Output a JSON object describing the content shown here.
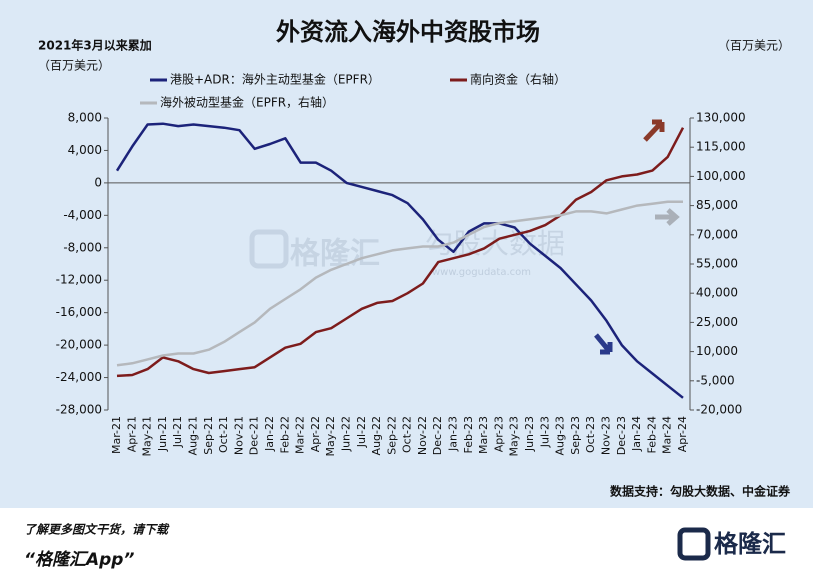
{
  "chart_data": {
    "type": "line",
    "title": "外资流入海外中资股市场",
    "y_axis_note": "2021年3月以来累加",
    "y_axis_unit": "（百万美元）",
    "y2_axis_unit": "（百万美元）",
    "categories": [
      "Mar-21",
      "Apr-21",
      "May-21",
      "Jun-21",
      "Jul-21",
      "Aug-21",
      "Sep-21",
      "Oct-21",
      "Nov-21",
      "Dec-21",
      "Jan-22",
      "Feb-22",
      "Mar-22",
      "Apr-22",
      "May-22",
      "Jun-22",
      "Jul-22",
      "Aug-22",
      "Sep-22",
      "Oct-22",
      "Nov-22",
      "Dec-22",
      "Jan-23",
      "Feb-23",
      "Mar-23",
      "Apr-23",
      "May-23",
      "Jun-23",
      "Jul-23",
      "Aug-23",
      "Sep-23",
      "Oct-23",
      "Nov-23",
      "Dec-23",
      "Jan-24",
      "Feb-24",
      "Mar-24",
      "Apr-24"
    ],
    "series": [
      {
        "name": "港股+ADR：海外主动型基金（EPFR）",
        "color": "#1c237a",
        "axis": "y",
        "values": [
          1500,
          4500,
          7200,
          7300,
          7000,
          7200,
          7000,
          6800,
          6500,
          4200,
          4800,
          5500,
          2500,
          2500,
          1500,
          0,
          -500,
          -1000,
          -1500,
          -2500,
          -4500,
          -7000,
          -8500,
          -6000,
          -5000,
          -5000,
          -5500,
          -7500,
          -9000,
          -10500,
          -12500,
          -14500,
          -17000,
          -20000,
          -22000,
          -23500,
          -25000,
          -26500
        ]
      },
      {
        "name": "南向资金（右轴）",
        "color": "#7d1c1c",
        "axis": "y2",
        "values": [
          -2500,
          -2000,
          1000,
          7000,
          5000,
          1000,
          -1000,
          0,
          1000,
          2000,
          7000,
          12000,
          14000,
          20000,
          22000,
          27000,
          32000,
          35000,
          36000,
          40000,
          45000,
          56000,
          58000,
          60000,
          63000,
          68000,
          70000,
          72000,
          75000,
          80000,
          88000,
          92000,
          98000,
          100000,
          101000,
          103000,
          110000,
          125000
        ]
      },
      {
        "name": "海外被动型基金（EPFR，右轴）",
        "color": "#b5b8bc",
        "axis": "y2",
        "values": [
          3000,
          4000,
          6000,
          8000,
          9000,
          9000,
          11000,
          15000,
          20000,
          25000,
          32000,
          37000,
          42000,
          48000,
          52000,
          55000,
          58000,
          60000,
          62000,
          63000,
          64000,
          64000,
          66000,
          70000,
          74000,
          76000,
          77000,
          78000,
          79000,
          80000,
          82000,
          82000,
          81000,
          83000,
          85000,
          86000,
          87000,
          87000
        ]
      }
    ],
    "ylim": [
      -28000,
      8000
    ],
    "yticks": [
      {
        "value": 8000,
        "label": "8,000"
      },
      {
        "value": 4000,
        "label": "4,000"
      },
      0,
      {
        "value": -4000,
        "label": "-4,000"
      },
      {
        "value": -8000,
        "label": "-8,000"
      },
      {
        "value": -12000,
        "label": "-12,000"
      },
      {
        "value": -16000,
        "label": "-16,000"
      },
      {
        "value": -20000,
        "label": "-20,000"
      },
      {
        "value": -24000,
        "label": "-24,000"
      },
      {
        "value": -28000,
        "label": "-28,000"
      }
    ],
    "y2lim": [
      -20000,
      130000
    ],
    "y2ticks": [
      {
        "value": 130000,
        "label": "130,000"
      },
      {
        "value": 115000,
        "label": "115,000"
      },
      {
        "value": 100000,
        "label": "100,000"
      },
      {
        "value": 85000,
        "label": "85,000"
      },
      {
        "value": 70000,
        "label": "70,000"
      },
      {
        "value": 55000,
        "label": "55,000"
      },
      {
        "value": 40000,
        "label": "40,000"
      },
      {
        "value": 25000,
        "label": "25,000"
      },
      {
        "value": 10000,
        "label": "10,000"
      },
      {
        "value": -5000,
        "label": "-5,000"
      },
      {
        "value": -20000,
        "label": "-20,000"
      }
    ],
    "source": "数据支持：勾股大数据、中金证券",
    "watermark": [
      "格隆汇",
      "勾股大数据",
      "www.gogudata.com"
    ]
  },
  "footer": {
    "line1": "了解更多图文干货，请下载",
    "line2": "“格隆汇App”",
    "logo": "格隆汇"
  }
}
